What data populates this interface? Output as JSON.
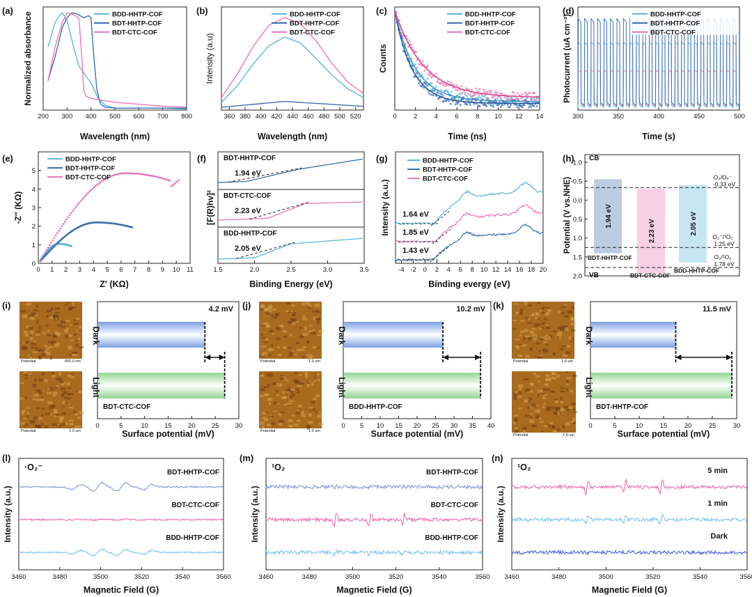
{
  "panels": {
    "a": "(a)",
    "b": "(b)",
    "c": "(c)",
    "d": "(d)",
    "e": "(e)",
    "f": "(f)",
    "g": "(g)",
    "h": "(h)",
    "i": "(i)",
    "j": "(j)",
    "k": "(k)",
    "l": "(l)",
    "m": "(m)",
    "n": "(n)"
  },
  "colors": {
    "BDD-HHTP-COF": "#5bb8d8",
    "BDT-HHTP-COF": "#3f6fb0",
    "BDT-CTC-COF": "#e779b7",
    "epr_top": "#8a97dc",
    "epr_mid": "#ec6fae",
    "epr_bot": "#7cc3ec",
    "epr_dark": "#4a5fd8",
    "dark_bar": "#8fb0ea",
    "light_bar": "#a9dfa9",
    "afm": "#b57a2a"
  },
  "legend": [
    "BDD-HHTP-COF",
    "BDT-HHTP-COF",
    "BDT-CTC-COF"
  ],
  "chart_data": [
    {
      "id": "a",
      "type": "line",
      "xlabel": "Wavelength (nm)",
      "ylabel": "Normalized absorbance",
      "xlim": [
        200,
        800
      ],
      "xticks": [
        200,
        300,
        400,
        500,
        600,
        700,
        800
      ],
      "series": [
        {
          "name": "BDD-HHTP-COF",
          "x": [
            220,
            250,
            270,
            280,
            300,
            330,
            350,
            370,
            400,
            430,
            460,
            500,
            600,
            700,
            800
          ],
          "y": [
            0.65,
            0.9,
            0.98,
            1.0,
            0.92,
            0.62,
            0.45,
            0.38,
            0.28,
            0.12,
            0.05,
            0.02,
            0.02,
            0.02,
            0.01
          ]
        },
        {
          "name": "BDT-HHTP-COF",
          "x": [
            220,
            250,
            280,
            300,
            320,
            340,
            370,
            390,
            400,
            410,
            425,
            440,
            460,
            500,
            600,
            800
          ],
          "y": [
            0.3,
            0.55,
            0.85,
            0.95,
            1.0,
            0.99,
            0.95,
            0.97,
            0.95,
            0.6,
            0.2,
            0.06,
            0.03,
            0.02,
            0.02,
            0.02
          ]
        },
        {
          "name": "BDT-CTC-COF",
          "x": [
            220,
            250,
            280,
            300,
            330,
            350,
            360,
            370,
            380,
            400,
            450,
            500,
            600,
            700,
            800
          ],
          "y": [
            0.3,
            0.65,
            0.9,
            1.0,
            0.98,
            0.94,
            0.6,
            0.2,
            0.14,
            0.12,
            0.1,
            0.08,
            0.06,
            0.04,
            0.03
          ]
        }
      ]
    },
    {
      "id": "b",
      "type": "line",
      "xlabel": "Wavelength (nm)",
      "ylabel": "Intensity (a.u)",
      "xlim": [
        350,
        530
      ],
      "xticks": [
        360,
        380,
        400,
        420,
        440,
        460,
        480,
        500,
        520
      ],
      "series": [
        {
          "name": "BDD-HHTP-COF",
          "x": [
            350,
            370,
            390,
            410,
            430,
            450,
            470,
            490,
            510,
            530
          ],
          "y": [
            0.05,
            0.22,
            0.44,
            0.63,
            0.72,
            0.66,
            0.5,
            0.33,
            0.19,
            0.1
          ]
        },
        {
          "name": "BDT-HHTP-COF",
          "x": [
            350,
            390,
            430,
            470,
            510,
            530
          ],
          "y": [
            0.0,
            0.03,
            0.06,
            0.04,
            0.02,
            0.01
          ]
        },
        {
          "name": "BDT-CTC-COF",
          "x": [
            350,
            370,
            390,
            410,
            430,
            450,
            470,
            490,
            510,
            530
          ],
          "y": [
            0.1,
            0.34,
            0.62,
            0.84,
            0.92,
            0.86,
            0.68,
            0.45,
            0.26,
            0.14
          ]
        }
      ]
    },
    {
      "id": "c",
      "type": "scatter",
      "xlabel": "Time (ns)",
      "ylabel": "Counts",
      "xlim": [
        0,
        14
      ],
      "xticks": [
        0,
        2,
        4,
        6,
        8,
        10,
        12,
        14
      ],
      "series": [
        {
          "name": "BDD-HHTP-COF",
          "tau": 2.0,
          "base": 0.06
        },
        {
          "name": "BDT-HHTP-COF",
          "tau": 1.7,
          "base": 0.04
        },
        {
          "name": "BDT-CTC-COF",
          "tau": 2.8,
          "base": 0.1
        }
      ]
    },
    {
      "id": "d",
      "type": "line",
      "xlabel": "Time (s)",
      "ylabel": "Photocurrent (uA cm⁻²)",
      "xlim": [
        300,
        500
      ],
      "ylim": [
        0,
        22
      ],
      "xticks": [
        300,
        350,
        400,
        450,
        500
      ],
      "period": 8,
      "series": [
        {
          "name": "BDD-HHTP-COF",
          "on": 14.5,
          "off": 0.6
        },
        {
          "name": "BDT-HHTP-COF",
          "on": 19.5,
          "off": 1.0
        },
        {
          "name": "BDT-CTC-COF",
          "on": 8.5,
          "off": 0.8
        }
      ]
    },
    {
      "id": "e",
      "type": "scatter",
      "xlabel": "Z′ (KΩ)",
      "ylabel": "-Z″ (KΩ)",
      "xlim": [
        0,
        11
      ],
      "ylim": [
        0,
        6
      ],
      "xticks": [
        0,
        1,
        2,
        3,
        4,
        5,
        6,
        7,
        8,
        9,
        10,
        11
      ],
      "yticks": [
        0,
        1,
        2,
        3,
        4,
        5
      ],
      "series": [
        {
          "name": "BDD-HHTP-COF",
          "end": 2.4,
          "peak": 1.05
        },
        {
          "name": "BDT-HHTP-COF",
          "end": 6.8,
          "peak": 2.2
        },
        {
          "name": "BDT-CTC-COF",
          "end": 10.2,
          "peak": 4.85
        }
      ]
    },
    {
      "id": "f",
      "type": "line",
      "xlabel": "Binding Energy (eV)",
      "ylabel": "[F(R)hv]²",
      "xlim": [
        1.5,
        3.5
      ],
      "xticks": [
        1.5,
        2.0,
        2.5,
        3.0,
        3.5
      ],
      "series": [
        {
          "name": "BDT-HHTP-COF",
          "gap": "1.94 eV"
        },
        {
          "name": "BDT-CTC-COF",
          "gap": "2.23 eV"
        },
        {
          "name": "BDD-HHTP-COF",
          "gap": "2.05 eV"
        }
      ]
    },
    {
      "id": "g",
      "type": "line",
      "xlabel": "Binding evergy (eV)",
      "ylabel": "Intensity (a.u.)",
      "xlim": [
        -5,
        20
      ],
      "xticks": [
        -4,
        -2,
        0,
        2,
        4,
        6,
        8,
        10,
        12,
        14,
        16,
        18,
        20
      ],
      "labels": [
        "1.64 eV",
        "1.85 eV",
        "1.43 eV"
      ]
    },
    {
      "id": "h",
      "type": "bar",
      "ylabel": "Potential (V vs.NHE)",
      "ylim": [
        2.0,
        -1.2
      ],
      "yticks": [
        -1.0,
        -0.5,
        0.0,
        0.5,
        1.0,
        1.5,
        2.0
      ],
      "cb": "CB",
      "vb": "VB",
      "bars": [
        {
          "name": "BDT-HHTP-COF",
          "top": -0.55,
          "bottom": 1.4,
          "label": "1.94 eV"
        },
        {
          "name": "BDT-CTC-COF",
          "top": -0.3,
          "bottom": 1.93,
          "label": "2.23 eV"
        },
        {
          "name": "BDD-HHTP-COF",
          "top": -0.4,
          "bottom": 1.65,
          "label": "2.05 eV"
        }
      ],
      "lines": [
        {
          "y": -0.33,
          "l1": "O₂/O₂⁻",
          "l2": "-0.33 eV"
        },
        {
          "y": 1.25,
          "l1": "O₂⁻/¹O₂",
          "l2": "1.25 eV"
        },
        {
          "y": 1.78,
          "l1": "O₂/¹O₂",
          "l2": "1.78 eV"
        }
      ]
    },
    {
      "id": "i",
      "type": "bar",
      "xlabel": "Surface potential (mV)",
      "xlim": [
        0,
        30
      ],
      "xticks": [
        0,
        5,
        10,
        15,
        20,
        25,
        30
      ],
      "dark": 22.8,
      "light": 27.0,
      "delta": "4.2 mV",
      "sample": "BDT-CTC-COF",
      "dark_label": "Dark",
      "light_label": "Light",
      "afm": [
        "Potential",
        "600.0 nm",
        "Potential",
        "1.0 um"
      ]
    },
    {
      "id": "j",
      "type": "bar",
      "xlabel": "Surface potential (mV)",
      "xlim": [
        0,
        40
      ],
      "xticks": [
        0,
        5,
        10,
        15,
        20,
        25,
        30,
        35,
        40
      ],
      "dark": 27.0,
      "light": 37.2,
      "delta": "10.2 mV",
      "sample": "BDD-HHTP-COF",
      "dark_label": "Dark",
      "light_label": "Light",
      "afm": [
        "Potential",
        "1.0 um",
        "Potential",
        "1.0 um"
      ]
    },
    {
      "id": "k",
      "type": "bar",
      "xlabel": "Surface potential (mV)",
      "xlim": [
        0,
        30
      ],
      "xticks": [
        0,
        5,
        10,
        15,
        20,
        25,
        30
      ],
      "dark": 17.5,
      "light": 29.0,
      "delta": "11.5 mV",
      "sample": "BDT-HHTP-COF",
      "dark_label": "Dark",
      "light_label": "Light",
      "afm": [
        "Potential",
        "1.0 um",
        "Potential",
        "1.0 um"
      ]
    },
    {
      "id": "l",
      "type": "line",
      "xlabel": "Magnetic Field (G)",
      "ylabel": "Intensity (a.u.)",
      "xlim": [
        3460,
        3560
      ],
      "xticks": [
        3460,
        3480,
        3500,
        3520,
        3540,
        3560
      ],
      "species": "·O₂⁻",
      "series": [
        {
          "name": "BDT-HHTP-COF",
          "amp": 1.0
        },
        {
          "name": "BDT-CTC-COF",
          "amp": 0.1
        },
        {
          "name": "BDD-HHTP-COF",
          "amp": 0.75
        }
      ]
    },
    {
      "id": "m",
      "type": "line",
      "xlabel": "Magnetic Field (G)",
      "ylabel": "Intensity (a.u.)",
      "xlim": [
        3460,
        3560
      ],
      "xticks": [
        3460,
        3480,
        3500,
        3520,
        3540,
        3560
      ],
      "species": "¹O₂",
      "series": [
        {
          "name": "BDT-HHTP-COF",
          "amp": 0.15
        },
        {
          "name": "BDT-CTC-COF",
          "amp": 1.0
        },
        {
          "name": "BDD-HHTP-COF",
          "amp": 0.3
        }
      ]
    },
    {
      "id": "n",
      "type": "line",
      "xlabel": "Magnetic Field (G)",
      "ylabel": "Intensity (a.u.)",
      "xlim": [
        3460,
        3560
      ],
      "xticks": [
        3460,
        3480,
        3500,
        3520,
        3540,
        3560
      ],
      "species": "¹O₂",
      "series": [
        {
          "name": "5 min",
          "amp": 1.0
        },
        {
          "name": "1 min",
          "amp": 0.7
        },
        {
          "name": "Dark",
          "amp": 0.0
        }
      ]
    }
  ]
}
